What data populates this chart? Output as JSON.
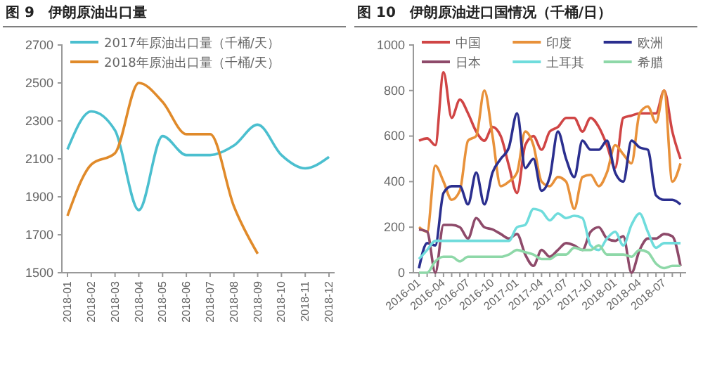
{
  "chart_data": [
    {
      "type": "line",
      "title": "图 9　伊朗原油出口量",
      "categories": [
        "2018-01",
        "2018-02",
        "2018-03",
        "2018-04",
        "2018-05",
        "2018-06",
        "2018-07",
        "2018-08",
        "2018-09",
        "2018-10",
        "2018-11",
        "2018-12"
      ],
      "series": [
        {
          "name": "2017年原油出口量（千桶/天）",
          "color": "#4bbfcf",
          "values": [
            2150,
            2350,
            2250,
            1830,
            2220,
            2120,
            2120,
            2170,
            2280,
            2120,
            2050,
            2110
          ]
        },
        {
          "name": "2018年原油出口量（千桶/天）",
          "color": "#e08a2a",
          "values": [
            1800,
            2070,
            2130,
            2500,
            2400,
            2230,
            2230,
            1850,
            1600,
            null,
            null,
            null
          ]
        }
      ],
      "ylim": [
        1500,
        2700
      ],
      "yticks": [
        1500,
        1700,
        1900,
        2100,
        2300,
        2500,
        2700
      ],
      "legend": "top left",
      "grid": false
    },
    {
      "type": "line",
      "title": "图 10　伊朗原油进口国情况（千桶/日）",
      "categories": [
        "2016-01",
        null,
        null,
        "2016-04",
        null,
        null,
        "2016-07",
        null,
        null,
        "2016-10",
        null,
        null,
        "2017-01",
        null,
        null,
        "2017-04",
        null,
        null,
        "2017-07",
        null,
        null,
        "2017-10",
        null,
        null,
        "2018-01",
        null,
        null,
        "2018-04",
        null,
        null,
        "2018-07",
        null,
        null
      ],
      "series": [
        {
          "name": "中国",
          "color": "#d04545",
          "values": [
            580,
            590,
            560,
            880,
            680,
            760,
            700,
            620,
            580,
            640,
            600,
            470,
            350,
            560,
            600,
            540,
            620,
            640,
            680,
            680,
            620,
            680,
            640,
            560,
            460,
            680,
            690,
            700,
            700,
            700,
            800,
            620,
            500
          ]
        },
        {
          "name": "印度",
          "color": "#e8913a",
          "values": [
            200,
            180,
            470,
            400,
            320,
            360,
            580,
            600,
            800,
            600,
            380,
            400,
            440,
            620,
            560,
            400,
            380,
            420,
            400,
            280,
            420,
            430,
            380,
            440,
            560,
            520,
            480,
            700,
            730,
            660,
            800,
            400,
            480
          ]
        },
        {
          "name": "欧洲",
          "color": "#2b2f8f",
          "values": [
            20,
            130,
            120,
            350,
            380,
            380,
            300,
            440,
            300,
            440,
            500,
            550,
            700,
            460,
            500,
            360,
            420,
            620,
            500,
            420,
            580,
            540,
            540,
            580,
            440,
            400,
            580,
            550,
            540,
            340,
            320,
            320,
            300
          ]
        },
        {
          "name": "日本",
          "color": "#8e4a6a",
          "values": [
            190,
            180,
            0,
            210,
            210,
            200,
            150,
            240,
            200,
            190,
            170,
            150,
            170,
            80,
            30,
            100,
            70,
            100,
            130,
            120,
            100,
            180,
            200,
            150,
            140,
            160,
            0,
            100,
            150,
            150,
            170,
            160,
            30
          ]
        },
        {
          "name": "土耳其",
          "color": "#6fdcdc",
          "values": [
            60,
            100,
            140,
            140,
            140,
            140,
            140,
            140,
            140,
            140,
            140,
            140,
            200,
            210,
            280,
            270,
            230,
            260,
            240,
            250,
            240,
            120,
            100,
            150,
            180,
            120,
            210,
            260,
            180,
            110,
            130,
            130,
            130
          ]
        },
        {
          "name": "希腊",
          "color": "#8ed8a8",
          "values": [
            0,
            0,
            50,
            70,
            70,
            50,
            70,
            70,
            70,
            70,
            70,
            80,
            100,
            90,
            80,
            60,
            60,
            80,
            80,
            110,
            100,
            100,
            120,
            80,
            80,
            80,
            70,
            100,
            90,
            40,
            20,
            30,
            30
          ]
        }
      ],
      "ylim": [
        0,
        1000
      ],
      "yticks": [
        0,
        200,
        400,
        600,
        800,
        1000
      ],
      "legend": "top",
      "grid": false
    }
  ]
}
